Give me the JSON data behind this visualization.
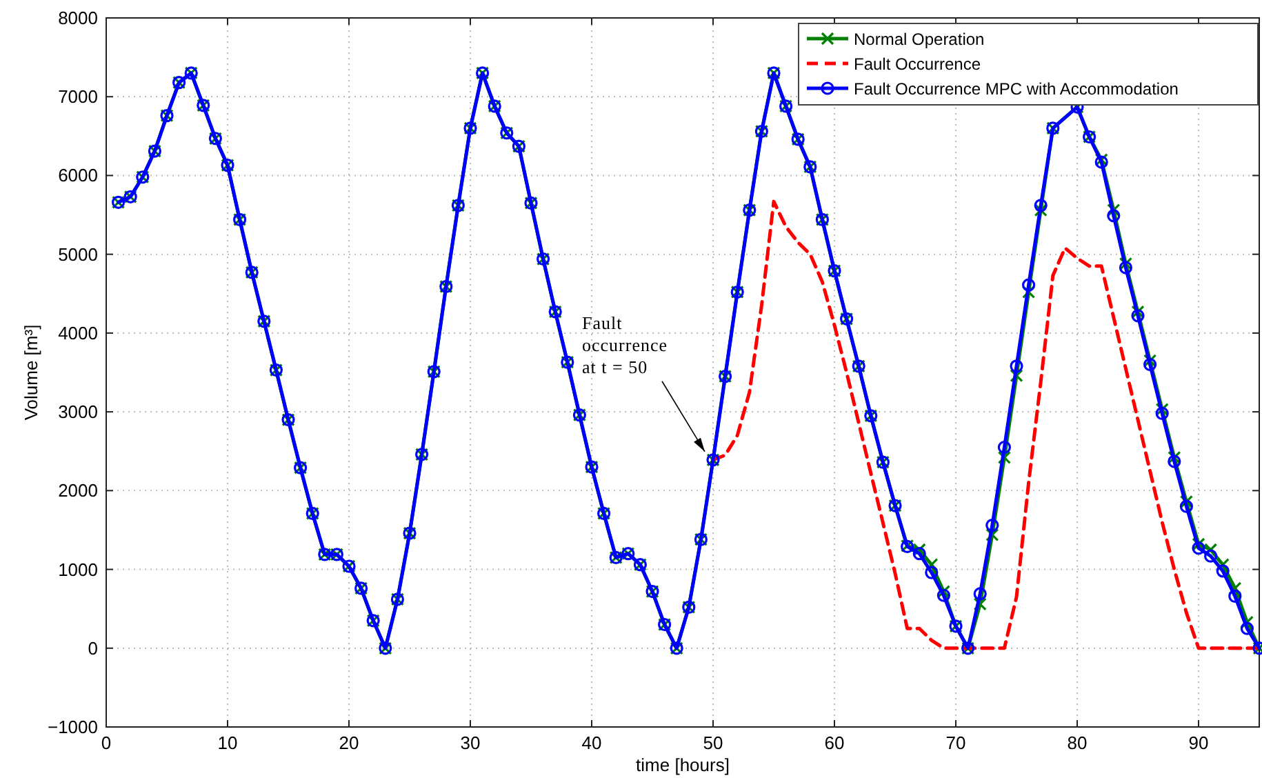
{
  "chart_data": {
    "type": "line",
    "xlabel": "time [hours]",
    "ylabel": "Volume [m³]",
    "xlim": [
      0,
      95
    ],
    "xticks": [
      0,
      10,
      20,
      30,
      40,
      50,
      60,
      70,
      80,
      90
    ],
    "ylim": [
      -1000,
      8000
    ],
    "yticks": [
      {
        "value": -1000,
        "label": "−1000"
      },
      0,
      1000,
      2000,
      3000,
      4000,
      5000,
      6000,
      7000,
      8000
    ],
    "grid": true,
    "legend": "top right",
    "annotations": [
      {
        "text": "Fault occurrence at t = 50",
        "x": 50,
        "y": 2390
      }
    ],
    "series": [
      {
        "name": "Normal Operation",
        "color": "#008000",
        "marker": "cross",
        "line_style": "solid",
        "x": [
          1,
          2,
          3,
          4,
          5,
          6,
          7,
          8,
          9,
          10,
          11,
          12,
          13,
          14,
          15,
          16,
          17,
          18,
          19,
          20,
          21,
          22,
          23,
          24,
          25,
          26,
          27,
          28,
          29,
          30,
          31,
          32,
          33,
          34,
          35,
          36,
          37,
          38,
          39,
          40,
          41,
          42,
          43,
          44,
          45,
          46,
          47,
          48,
          49,
          50,
          51,
          52,
          53,
          54,
          55,
          56,
          57,
          58,
          59,
          60,
          61,
          62,
          63,
          64,
          65,
          66,
          67,
          68,
          69,
          70,
          71,
          72,
          73,
          74,
          75,
          76,
          77,
          78,
          79,
          80,
          81,
          82,
          83,
          84,
          85,
          86,
          87,
          88,
          89,
          90,
          91,
          92,
          93,
          94,
          95
        ],
        "values": [
          5660,
          5730,
          5980,
          6310,
          6760,
          7180,
          7300,
          6890,
          6470,
          6130,
          5440,
          4770,
          4150,
          3530,
          2900,
          2290,
          1710,
          1190,
          1190,
          1040,
          760,
          350,
          0,
          620,
          1460,
          2460,
          3510,
          4590,
          5620,
          6600,
          7300,
          6880,
          6540,
          6370,
          5650,
          4940,
          4270,
          3630,
          2960,
          2300,
          1710,
          1150,
          1200,
          1060,
          720,
          300,
          0,
          520,
          1380,
          2390,
          3450,
          4520,
          5560,
          6560,
          7300,
          6880,
          6460,
          6110,
          5440,
          4790,
          4180,
          3580,
          2950,
          2360,
          1810,
          1300,
          1250,
          1060,
          720,
          280,
          0,
          560,
          1440,
          2420,
          3460,
          4520,
          5560,
          6600,
          null,
          6870,
          6490,
          6200,
          5560,
          4880,
          4270,
          3650,
          3030,
          2420,
          1860,
          1320,
          1250,
          1060,
          760,
          330,
          0
        ]
      },
      {
        "name": "Fault Occurrence",
        "color": "#ff0000",
        "marker": "none",
        "line_style": "dashed",
        "x": [
          50,
          51,
          52,
          53,
          54,
          55,
          56,
          57,
          58,
          59,
          60,
          61,
          62,
          63,
          64,
          65,
          66,
          67,
          68,
          69,
          70,
          71,
          72,
          73,
          74,
          75,
          76,
          77,
          78,
          79,
          80,
          81,
          82,
          83,
          84,
          85,
          86,
          87,
          88,
          89,
          90,
          91,
          92,
          93,
          94,
          95
        ],
        "values": [
          2390,
          2450,
          2700,
          3250,
          4350,
          5670,
          5350,
          5150,
          5000,
          4650,
          4100,
          3500,
          2860,
          2220,
          1590,
          950,
          250,
          250,
          100,
          0,
          0,
          0,
          0,
          0,
          0,
          650,
          2100,
          3380,
          4730,
          5080,
          4950,
          4850,
          4850,
          4200,
          3550,
          2900,
          2250,
          1600,
          1000,
          450,
          0,
          0,
          0,
          0,
          0,
          0
        ]
      },
      {
        "name": "Fault Occurrence MPC with Accommodation",
        "color": "#0000ff",
        "marker": "circle",
        "line_style": "solid",
        "x": [
          1,
          2,
          3,
          4,
          5,
          6,
          7,
          8,
          9,
          10,
          11,
          12,
          13,
          14,
          15,
          16,
          17,
          18,
          19,
          20,
          21,
          22,
          23,
          24,
          25,
          26,
          27,
          28,
          29,
          30,
          31,
          32,
          33,
          34,
          35,
          36,
          37,
          38,
          39,
          40,
          41,
          42,
          43,
          44,
          45,
          46,
          47,
          48,
          49,
          50,
          51,
          52,
          53,
          54,
          55,
          56,
          57,
          58,
          59,
          60,
          61,
          62,
          63,
          64,
          65,
          66,
          67,
          68,
          69,
          70,
          71,
          72,
          73,
          74,
          75,
          76,
          77,
          78,
          79,
          80,
          81,
          82,
          83,
          84,
          85,
          86,
          87,
          88,
          89,
          90,
          91,
          92,
          93,
          94,
          95
        ],
        "values": [
          5660,
          5730,
          5980,
          6310,
          6760,
          7180,
          7300,
          6890,
          6470,
          6130,
          5440,
          4770,
          4150,
          3530,
          2900,
          2290,
          1710,
          1190,
          1190,
          1040,
          760,
          350,
          0,
          620,
          1460,
          2460,
          3510,
          4590,
          5620,
          6600,
          7300,
          6880,
          6540,
          6370,
          5650,
          4940,
          4270,
          3630,
          2960,
          2300,
          1710,
          1150,
          1200,
          1060,
          720,
          300,
          0,
          520,
          1380,
          2390,
          3450,
          4520,
          5560,
          6560,
          7300,
          6880,
          6460,
          6110,
          5440,
          4790,
          4180,
          3580,
          2950,
          2360,
          1810,
          1290,
          1200,
          960,
          670,
          280,
          0,
          690,
          1560,
          2550,
          3580,
          4610,
          5620,
          6600,
          null,
          6870,
          6490,
          6170,
          5490,
          4830,
          4220,
          3600,
          2980,
          2370,
          1800,
          1270,
          1170,
          980,
          660,
          250,
          0
        ]
      }
    ]
  }
}
